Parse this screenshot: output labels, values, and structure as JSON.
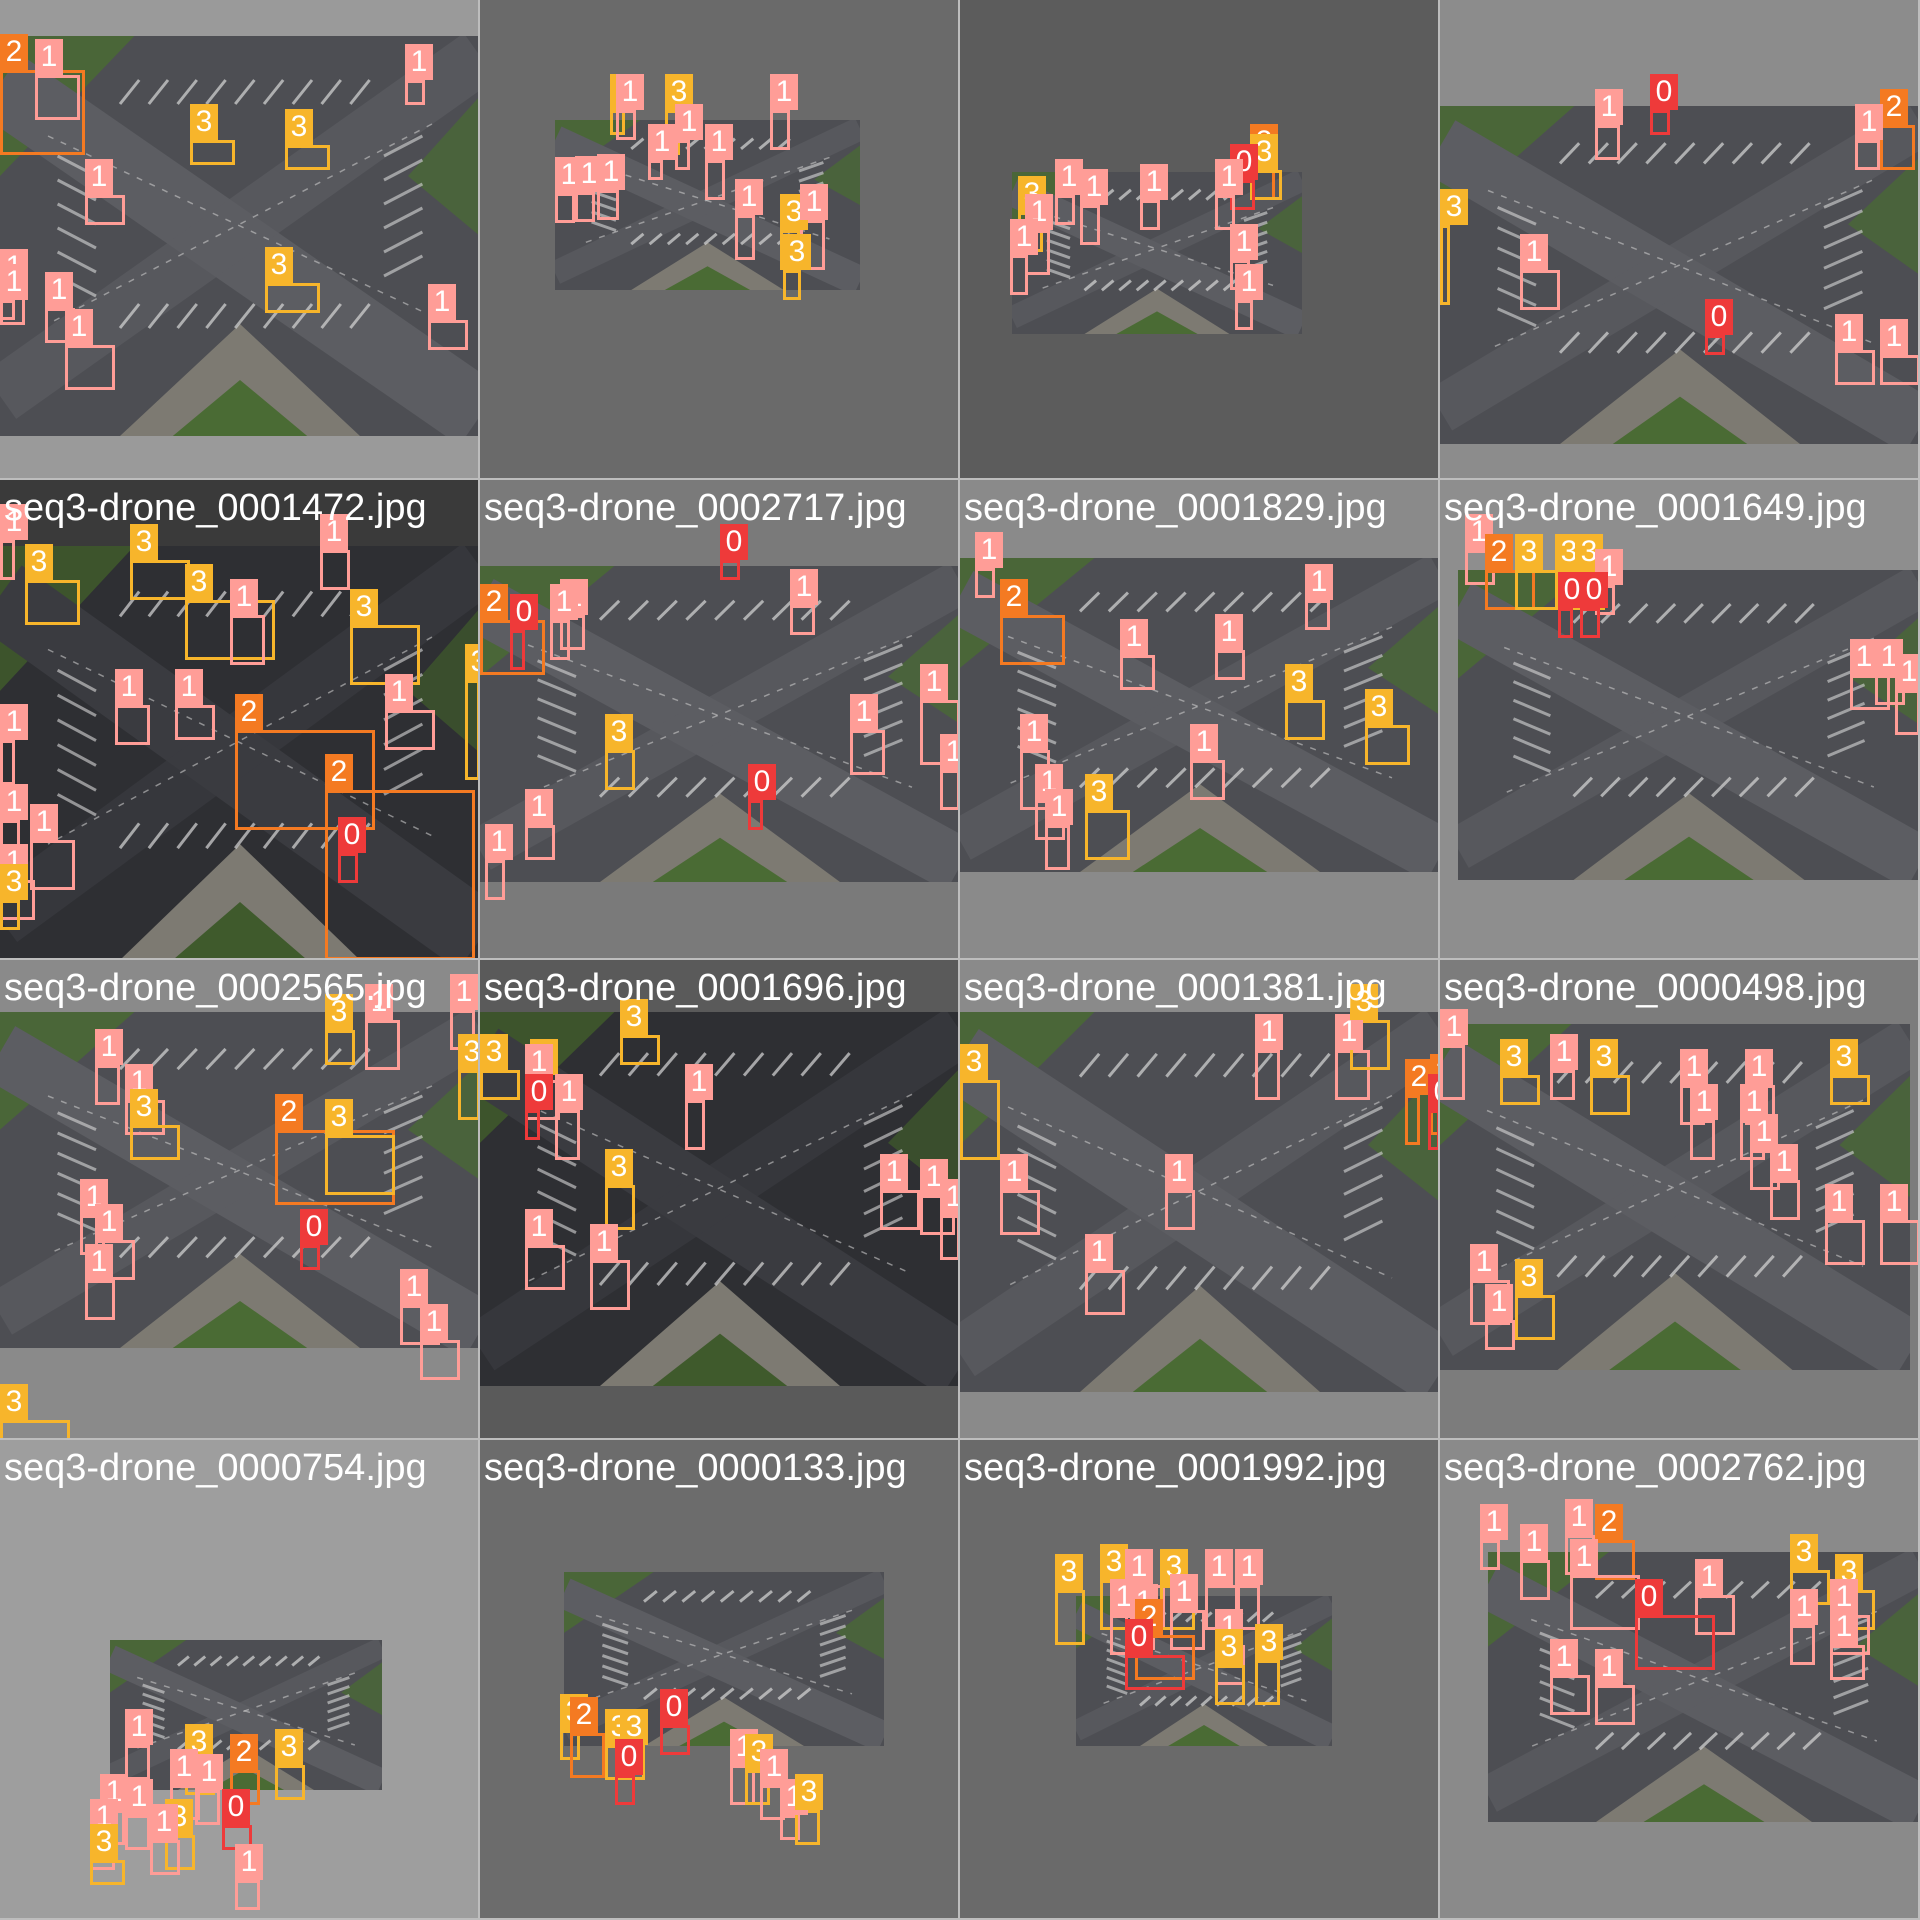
{
  "mosaic": {
    "class_colors": {
      "0": "#ee3a3a",
      "1": "#ff9d97",
      "2": "#f47a22",
      "3": "#f7b52b"
    },
    "tiles": [
      {
        "name": "",
        "bg": "#9a9a9a",
        "dark": false,
        "dets": [
          {
            "c": 2
          },
          {
            "c": 1
          },
          {
            "c": 1
          },
          {
            "c": 3
          },
          {
            "c": 3
          },
          {
            "c": 1
          },
          {
            "c": 3
          },
          {
            "c": 1
          },
          {
            "c": 1
          },
          {
            "c": 1
          },
          {
            "c": 1
          },
          {
            "c": 1
          }
        ]
      },
      {
        "name": "",
        "bg": "#6a6a6a",
        "dark": false,
        "dets": [
          {
            "c": 3
          },
          {
            "c": 1
          },
          {
            "c": 3
          },
          {
            "c": 1
          },
          {
            "c": 1
          },
          {
            "c": 1
          },
          {
            "c": 1
          },
          {
            "c": 1
          },
          {
            "c": 1
          },
          {
            "c": 1
          },
          {
            "c": 3
          },
          {
            "c": 1
          },
          {
            "c": 1
          },
          {
            "c": 3
          }
        ]
      },
      {
        "name": "",
        "bg": "#5c5c5c",
        "dark": false,
        "dets": [
          {
            "c": 3
          },
          {
            "c": 1
          },
          {
            "c": 1
          },
          {
            "c": 1
          },
          {
            "c": 1
          },
          {
            "c": 1
          },
          {
            "c": 2
          },
          {
            "c": 3
          },
          {
            "c": 0
          },
          {
            "c": 1
          },
          {
            "c": 1
          },
          {
            "c": 1
          }
        ]
      },
      {
        "name": "",
        "bg": "#8c8c8c",
        "dark": false,
        "dets": [
          {
            "c": 1
          },
          {
            "c": 0
          },
          {
            "c": 2
          },
          {
            "c": 1
          },
          {
            "c": 3
          },
          {
            "c": 1
          },
          {
            "c": 0
          },
          {
            "c": 1
          },
          {
            "c": 1
          }
        ]
      },
      {
        "name": "seq3-drone_0001472.jpg",
        "bg": "#3a3a3a",
        "dark": true,
        "dets": [
          {
            "c": 1
          },
          {
            "c": 3
          },
          {
            "c": 3
          },
          {
            "c": 3
          },
          {
            "c": 1
          },
          {
            "c": 1
          },
          {
            "c": 3
          },
          {
            "c": 1
          },
          {
            "c": 1
          },
          {
            "c": 1
          },
          {
            "c": 2
          },
          {
            "c": 1
          },
          {
            "c": 3
          },
          {
            "c": 2
          },
          {
            "c": 1
          },
          {
            "c": 1
          },
          {
            "c": 1
          },
          {
            "c": 0
          },
          {
            "c": 3
          }
        ]
      },
      {
        "name": "seq3-drone_0002717.jpg",
        "bg": "#7a7a7a",
        "dark": false,
        "dets": [
          {
            "c": 0
          },
          {
            "c": 2
          },
          {
            "c": 0
          },
          {
            "c": 1
          },
          {
            "c": 1
          },
          {
            "c": 1
          },
          {
            "c": 1
          },
          {
            "c": 3
          },
          {
            "c": 1
          },
          {
            "c": 1
          },
          {
            "c": 0
          },
          {
            "c": 1
          },
          {
            "c": 1
          }
        ]
      },
      {
        "name": "seq3-drone_0001829.jpg",
        "bg": "#8a8a8a",
        "dark": false,
        "dets": [
          {
            "c": 1
          },
          {
            "c": 2
          },
          {
            "c": 1
          },
          {
            "c": 1
          },
          {
            "c": 1
          },
          {
            "c": 3
          },
          {
            "c": 3
          },
          {
            "c": 1
          },
          {
            "c": 1
          },
          {
            "c": 1
          },
          {
            "c": 3
          },
          {
            "c": 1
          }
        ]
      },
      {
        "name": "seq3-drone_0001649.jpg",
        "bg": "#8e8e8e",
        "dark": false,
        "dets": [
          {
            "c": 1
          },
          {
            "c": 2
          },
          {
            "c": 3
          },
          {
            "c": 3
          },
          {
            "c": 3
          },
          {
            "c": 1
          },
          {
            "c": 0
          },
          {
            "c": 0
          },
          {
            "c": 1
          },
          {
            "c": 1
          },
          {
            "c": 1
          }
        ]
      },
      {
        "name": "seq3-drone_0002565.jpg",
        "bg": "#8a8a8a",
        "dark": false,
        "dets": [
          {
            "c": 1
          },
          {
            "c": 3
          },
          {
            "c": 1
          },
          {
            "c": 1
          },
          {
            "c": 3
          },
          {
            "c": 2
          },
          {
            "c": 3
          },
          {
            "c": 1
          },
          {
            "c": 3
          },
          {
            "c": 1
          },
          {
            "c": 1
          },
          {
            "c": 1
          },
          {
            "c": 0
          },
          {
            "c": 1
          },
          {
            "c": 1
          },
          {
            "c": 3
          }
        ]
      },
      {
        "name": "seq3-drone_0001696.jpg",
        "bg": "#5a5a5a",
        "dark": true,
        "dets": [
          {
            "c": 3
          },
          {
            "c": 3
          },
          {
            "c": 3
          },
          {
            "c": 1
          },
          {
            "c": 1
          },
          {
            "c": 0
          },
          {
            "c": 1
          },
          {
            "c": 3
          },
          {
            "c": 1
          },
          {
            "c": 1
          },
          {
            "c": 1
          },
          {
            "c": 1
          },
          {
            "c": 1
          }
        ]
      },
      {
        "name": "seq3-drone_0001381.jpg",
        "bg": "#8a8a8a",
        "dark": false,
        "dets": [
          {
            "c": 1
          },
          {
            "c": 3
          },
          {
            "c": 1
          },
          {
            "c": 2
          },
          {
            "c": 2
          },
          {
            "c": 0
          },
          {
            "c": 3
          },
          {
            "c": 1
          },
          {
            "c": 1
          },
          {
            "c": 1
          }
        ]
      },
      {
        "name": "seq3-drone_0000498.jpg",
        "bg": "#7c7c7c",
        "dark": false,
        "dets": [
          {
            "c": 1
          },
          {
            "c": 3
          },
          {
            "c": 1
          },
          {
            "c": 3
          },
          {
            "c": 1
          },
          {
            "c": 1
          },
          {
            "c": 3
          },
          {
            "c": 1
          },
          {
            "c": 1
          },
          {
            "c": 1
          },
          {
            "c": 1
          },
          {
            "c": 1
          },
          {
            "c": 1
          },
          {
            "c": 1
          },
          {
            "c": 3
          },
          {
            "c": 1
          }
        ]
      },
      {
        "name": "seq3-drone_0000754.jpg",
        "bg": "#9e9e9e",
        "dark": false,
        "dets": [
          {
            "c": 1
          },
          {
            "c": 3
          },
          {
            "c": 2
          },
          {
            "c": 3
          },
          {
            "c": 1
          },
          {
            "c": 1
          },
          {
            "c": 1
          },
          {
            "c": 1
          },
          {
            "c": 0
          },
          {
            "c": 1
          },
          {
            "c": 3
          },
          {
            "c": 3
          },
          {
            "c": 1
          },
          {
            "c": 1
          }
        ]
      },
      {
        "name": "seq3-drone_0000133.jpg",
        "bg": "#6c6c6c",
        "dark": false,
        "dets": [
          {
            "c": 3
          },
          {
            "c": 2
          },
          {
            "c": 3
          },
          {
            "c": 3
          },
          {
            "c": 0
          },
          {
            "c": 0
          },
          {
            "c": 1
          },
          {
            "c": 3
          },
          {
            "c": 1
          },
          {
            "c": 1
          },
          {
            "c": 3
          }
        ]
      },
      {
        "name": "seq3-drone_0001992.jpg",
        "bg": "#6a6a6a",
        "dark": false,
        "dets": [
          {
            "c": 3
          },
          {
            "c": 3
          },
          {
            "c": 1
          },
          {
            "c": 3
          },
          {
            "c": 1
          },
          {
            "c": 1
          },
          {
            "c": 1
          },
          {
            "c": 1
          },
          {
            "c": 1
          },
          {
            "c": 2
          },
          {
            "c": 0
          },
          {
            "c": 1
          },
          {
            "c": 3
          },
          {
            "c": 3
          }
        ]
      },
      {
        "name": "seq3-drone_0002762.jpg",
        "bg": "#8a8a8a",
        "dark": false,
        "dets": [
          {
            "c": 1
          },
          {
            "c": 1
          },
          {
            "c": 1
          },
          {
            "c": 2
          },
          {
            "c": 1
          },
          {
            "c": 3
          },
          {
            "c": 3
          },
          {
            "c": 1
          },
          {
            "c": 1
          },
          {
            "c": 1
          },
          {
            "c": 0
          },
          {
            "c": 1
          },
          {
            "c": 1
          },
          {
            "c": 1
          }
        ]
      }
    ]
  }
}
